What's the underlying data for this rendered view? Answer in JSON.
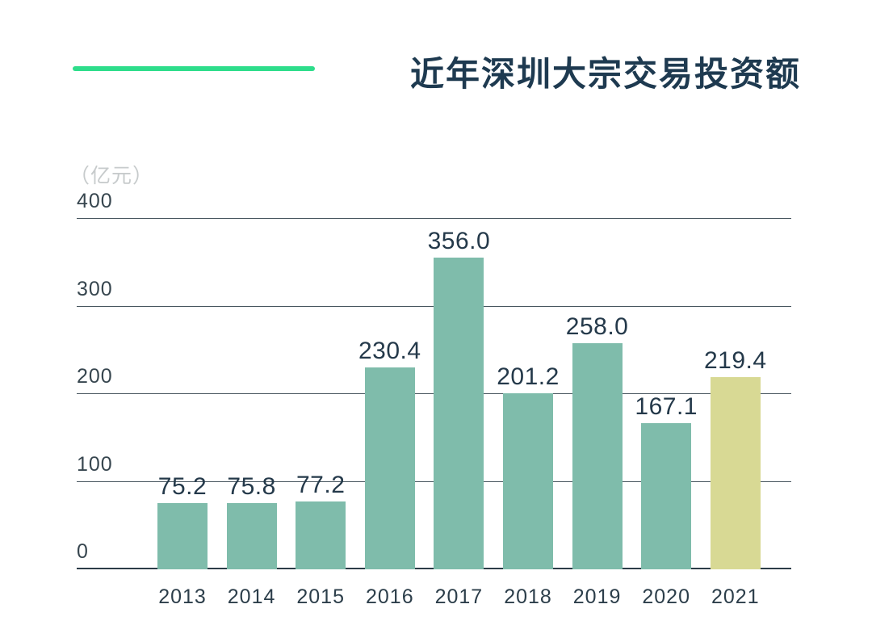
{
  "header": {
    "title": "近年深圳大宗交易投资额"
  },
  "colors": {
    "accent_line": "#2edd8b",
    "bar_default": "#7fbcab",
    "bar_highlight": "#d8d994",
    "title_text": "#1e3a50"
  },
  "chart_data": {
    "type": "bar",
    "title": "近年深圳大宗交易投资额",
    "unit_label": "（亿元）",
    "xlabel": "",
    "ylabel": "（亿元）",
    "categories": [
      "2013",
      "2014",
      "2015",
      "2016",
      "2017",
      "2018",
      "2019",
      "2020",
      "2021"
    ],
    "values": [
      75.2,
      75.8,
      77.2,
      230.4,
      356.0,
      201.2,
      258.0,
      167.1,
      219.4
    ],
    "value_labels": [
      "75.2",
      "75.8",
      "77.2",
      "230.4",
      "356.0",
      "201.2",
      "258.0",
      "167.1",
      "219.4"
    ],
    "ylim": [
      0,
      400
    ],
    "yticks": [
      0,
      100,
      200,
      300,
      400
    ],
    "grid": true,
    "legend_position": "none",
    "highlight_index": 8,
    "bar_color_default": "#7fbcab",
    "bar_color_highlight": "#d8d994"
  }
}
